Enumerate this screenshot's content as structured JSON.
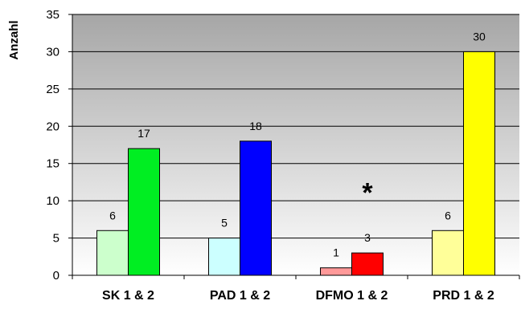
{
  "chart_data": {
    "type": "bar",
    "ylabel": "Anzahl",
    "xlabel": "",
    "title": "",
    "ylim": [
      0,
      35
    ],
    "yticks": [
      0,
      5,
      10,
      15,
      20,
      25,
      30,
      35
    ],
    "grid": true,
    "legend": "none",
    "categories": [
      "SK 1 & 2",
      "PAD 1 & 2",
      "DFMO 1 & 2",
      "PRD 1 & 2"
    ],
    "groups": [
      {
        "category": "SK 1 & 2",
        "bars": [
          {
            "value": 6,
            "label": "6",
            "color": "#ccffcc"
          },
          {
            "value": 17,
            "label": "17",
            "color": "#00ee22"
          }
        ]
      },
      {
        "category": "PAD 1 & 2",
        "bars": [
          {
            "value": 5,
            "label": "5",
            "color": "#ccffff"
          },
          {
            "value": 18,
            "label": "18",
            "color": "#0000ff"
          }
        ]
      },
      {
        "category": "DFMO 1 & 2",
        "bars": [
          {
            "value": 1,
            "label": "1",
            "color": "#ff9999"
          },
          {
            "value": 3,
            "label": "3",
            "color": "#ff0000"
          }
        ]
      },
      {
        "category": "PRD 1 & 2",
        "bars": [
          {
            "value": 6,
            "label": "6",
            "color": "#ffff99"
          },
          {
            "value": 30,
            "label": "30",
            "color": "#ffff00"
          }
        ]
      }
    ],
    "annotations": [
      {
        "text": "*",
        "category": "DFMO 1 & 2",
        "y": 12
      }
    ],
    "colors": {
      "plot_top": "#a6a6a6",
      "plot_bottom": "#ffffff",
      "grid": "#000000"
    }
  }
}
